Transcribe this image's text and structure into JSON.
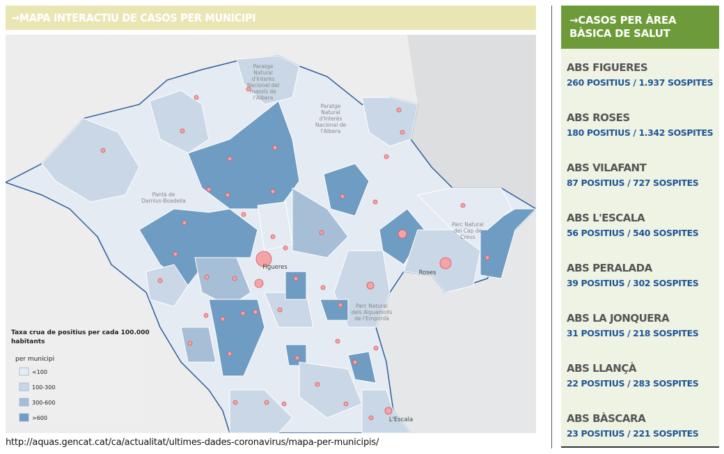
{
  "header": {
    "title": "→MAPA INTERACTIU DE CASOS PER MUNICIPI"
  },
  "map": {
    "labels": [
      {
        "lines": [
          "Paratge",
          "Natural",
          "d'Interès",
          "Nacional del",
          "massís de",
          "l'Albera"
        ]
      },
      {
        "lines": [
          "Paratge",
          "Natural",
          "d'Interès",
          "Nacional de",
          "l'Albera"
        ]
      },
      {
        "lines": [
          "Pantà de",
          "Darnius-Boadella"
        ]
      },
      {
        "lines": [
          "Figueres"
        ]
      },
      {
        "lines": [
          "Roses"
        ]
      },
      {
        "lines": [
          "Parc Natural",
          "del Cap de",
          "Creus"
        ]
      },
      {
        "lines": [
          "Parc Natural",
          "dels Aiguamolls",
          "de l'Empordà"
        ]
      },
      {
        "lines": [
          "L'Escala"
        ]
      }
    ],
    "legend": {
      "title_lines": [
        "Taxa crua de positius per cada 100.000",
        "habitants"
      ],
      "subtitle": "per municipi",
      "items": [
        {
          "label": "<100",
          "color": "#e4ebf3"
        },
        {
          "label": "100-300",
          "color": "#c9d7e6"
        },
        {
          "label": "300-600",
          "color": "#a7bfd6"
        },
        {
          "label": ">600",
          "color": "#6f9cc3"
        }
      ]
    }
  },
  "source": "http://aquas.gencat.cat/ca/actualitat/ultimes-dades-coronavirus/mapa-per-municipis/",
  "sidebar": {
    "title_lines": [
      "→CASOS PER ÀREA",
      "BÀSICA DE SALUT"
    ],
    "areas": [
      {
        "name": "ABS FIGUERES",
        "stats": "260 POSITIUS / 1.937 SOSPITES"
      },
      {
        "name": "ABS ROSES",
        "stats": "180 POSITIUS / 1.342 SOSPITES"
      },
      {
        "name": "ABS VILAFANT",
        "stats": "87 POSITIUS / 727 SOSPITES"
      },
      {
        "name": "ABS L'ESCALA",
        "stats": "56 POSITIUS / 540 SOSPITES"
      },
      {
        "name": "ABS PERALADA",
        "stats": "39 POSITIUS / 302 SOSPITES"
      },
      {
        "name": "ABS LA JONQUERA",
        "stats": "31 POSITIUS / 218 SOSPITES"
      },
      {
        "name": "ABS LLANÇÀ",
        "stats": "22 POSITIUS / 283 SOSPITES"
      },
      {
        "name": "ABS BÀSCARA",
        "stats": "23 POSITIUS / 221 SOSPITES"
      }
    ]
  }
}
